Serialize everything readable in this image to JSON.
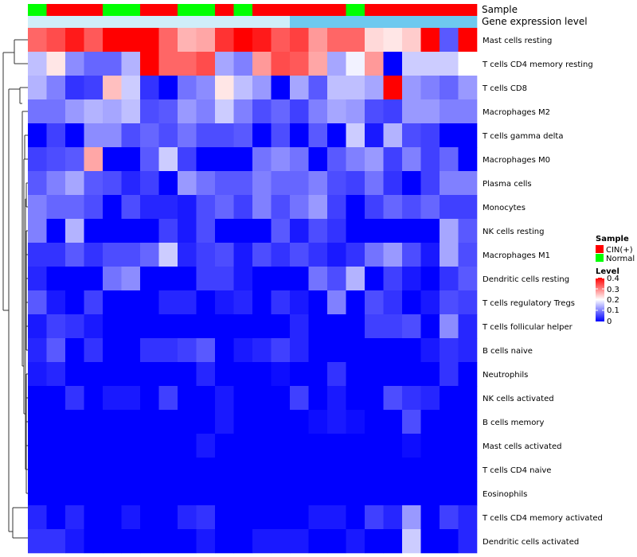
{
  "chart_data": {
    "type": "heatmap",
    "title": "",
    "annotation_tracks": [
      {
        "label": "Sample",
        "values": [
          "Normal",
          "CIN(+)",
          "CIN(+)",
          "CIN(+)",
          "Normal",
          "Normal",
          "CIN(+)",
          "CIN(+)",
          "Normal",
          "Normal",
          "CIN(+)",
          "Normal",
          "CIN(+)",
          "CIN(+)",
          "CIN(+)",
          "CIN(+)",
          "CIN(+)",
          "Normal",
          "CIN(+)",
          "CIN(+)",
          "CIN(+)",
          "CIN(+)",
          "CIN(+)",
          "CIN(+)"
        ]
      },
      {
        "label": "Gene expression level"
      }
    ],
    "rows": [
      "Mast cells resting",
      "T cells CD4 memory resting",
      "T cells CD8",
      "Macrophages M2",
      "T cells gamma delta",
      "Macrophages M0",
      "Plasma cells",
      "Monocytes",
      "NK cells resting",
      "Macrophages M1",
      "Dendritic cells resting",
      "T cells regulatory  Tregs",
      "T cells follicular helper",
      "B cells naive",
      "Neutrophils",
      "NK cells activated",
      "B cells memory",
      "Mast cells activated",
      "T cells CD4 naive",
      "Eosinophils",
      "T cells CD4 memory activated",
      "Dendritic cells activated"
    ],
    "values": [
      [
        0.32,
        0.34,
        0.38,
        0.33,
        0.4,
        0.4,
        0.4,
        0.32,
        0.26,
        0.27,
        0.36,
        0.4,
        0.38,
        0.33,
        0.35,
        0.28,
        0.32,
        0.32,
        0.23,
        0.22,
        0.24,
        0.4,
        0.07,
        0.4
      ],
      [
        0.15,
        0.22,
        0.11,
        0.08,
        0.08,
        0.14,
        0.4,
        0.32,
        0.32,
        0.34,
        0.13,
        0.1,
        0.28,
        0.34,
        0.33,
        0.27,
        0.13,
        0.19,
        0.28,
        0.0,
        0.16,
        0.16,
        0.16,
        0.2
      ],
      [
        0.14,
        0.1,
        0.04,
        0.05,
        0.25,
        0.16,
        0.04,
        0.0,
        0.09,
        0.11,
        0.22,
        0.15,
        0.12,
        0.0,
        0.13,
        0.07,
        0.15,
        0.15,
        0.13,
        0.4,
        0.12,
        0.1,
        0.08,
        0.12
      ],
      [
        0.09,
        0.09,
        0.12,
        0.14,
        0.13,
        0.15,
        0.06,
        0.07,
        0.12,
        0.1,
        0.16,
        0.1,
        0.06,
        0.08,
        0.05,
        0.1,
        0.13,
        0.12,
        0.06,
        0.05,
        0.12,
        0.12,
        0.1,
        0.1
      ],
      [
        0.0,
        0.05,
        0.0,
        0.11,
        0.11,
        0.06,
        0.08,
        0.06,
        0.09,
        0.06,
        0.06,
        0.07,
        0.0,
        0.06,
        0.0,
        0.07,
        0.0,
        0.16,
        0.02,
        0.14,
        0.06,
        0.05,
        0.0,
        0.0
      ],
      [
        0.05,
        0.06,
        0.07,
        0.27,
        0.0,
        0.0,
        0.07,
        0.16,
        0.05,
        0.0,
        0.0,
        0.0,
        0.09,
        0.11,
        0.09,
        0.0,
        0.07,
        0.1,
        0.12,
        0.05,
        0.1,
        0.05,
        0.08,
        0.0
      ],
      [
        0.07,
        0.1,
        0.13,
        0.07,
        0.06,
        0.03,
        0.05,
        0.0,
        0.12,
        0.09,
        0.07,
        0.07,
        0.1,
        0.08,
        0.08,
        0.1,
        0.06,
        0.05,
        0.09,
        0.04,
        0.0,
        0.05,
        0.1,
        0.1
      ],
      [
        0.1,
        0.08,
        0.08,
        0.06,
        0.0,
        0.06,
        0.03,
        0.03,
        0.02,
        0.06,
        0.08,
        0.05,
        0.1,
        0.06,
        0.09,
        0.12,
        0.05,
        0.0,
        0.05,
        0.08,
        0.06,
        0.08,
        0.05,
        0.05
      ],
      [
        0.1,
        0.0,
        0.14,
        0.0,
        0.0,
        0.0,
        0.0,
        0.05,
        0.02,
        0.06,
        0.0,
        0.0,
        0.0,
        0.07,
        0.02,
        0.06,
        0.04,
        0.0,
        0.0,
        0.0,
        0.0,
        0.0,
        0.13,
        0.07
      ],
      [
        0.04,
        0.04,
        0.07,
        0.04,
        0.06,
        0.06,
        0.08,
        0.16,
        0.03,
        0.05,
        0.06,
        0.02,
        0.06,
        0.04,
        0.06,
        0.04,
        0.02,
        0.04,
        0.09,
        0.12,
        0.06,
        0.02,
        0.13,
        0.06
      ],
      [
        0.03,
        0.0,
        0.0,
        0.0,
        0.09,
        0.11,
        0.0,
        0.0,
        0.0,
        0.05,
        0.05,
        0.02,
        0.0,
        0.0,
        0.0,
        0.09,
        0.06,
        0.14,
        0.0,
        0.05,
        0.02,
        0.0,
        0.04,
        0.07
      ],
      [
        0.07,
        0.02,
        0.0,
        0.05,
        0.0,
        0.0,
        0.0,
        0.03,
        0.03,
        0.0,
        0.02,
        0.03,
        0.0,
        0.04,
        0.02,
        0.0,
        0.1,
        0.0,
        0.06,
        0.04,
        0.0,
        0.02,
        0.06,
        0.05
      ],
      [
        0.02,
        0.05,
        0.04,
        0.02,
        0.0,
        0.0,
        0.0,
        0.0,
        0.0,
        0.0,
        0.0,
        0.0,
        0.0,
        0.0,
        0.03,
        0.0,
        0.0,
        0.0,
        0.05,
        0.05,
        0.06,
        0.0,
        0.11,
        0.03
      ],
      [
        0.03,
        0.07,
        0.0,
        0.04,
        0.0,
        0.0,
        0.04,
        0.04,
        0.05,
        0.07,
        0.0,
        0.02,
        0.03,
        0.05,
        0.03,
        0.0,
        0.0,
        0.0,
        0.0,
        0.0,
        0.0,
        0.02,
        0.04,
        0.03
      ],
      [
        0.02,
        0.03,
        0.0,
        0.0,
        0.0,
        0.0,
        0.0,
        0.0,
        0.0,
        0.03,
        0.0,
        0.0,
        0.0,
        0.01,
        0.0,
        0.0,
        0.04,
        0.0,
        0.0,
        0.0,
        0.0,
        0.0,
        0.04,
        0.0
      ],
      [
        0.0,
        0.0,
        0.04,
        0.0,
        0.02,
        0.02,
        0.0,
        0.05,
        0.0,
        0.0,
        0.02,
        0.0,
        0.0,
        0.0,
        0.05,
        0.0,
        0.02,
        0.0,
        0.0,
        0.06,
        0.04,
        0.03,
        0.0,
        0.0
      ],
      [
        0.0,
        0.0,
        0.0,
        0.0,
        0.0,
        0.0,
        0.0,
        0.0,
        0.0,
        0.0,
        0.02,
        0.0,
        0.0,
        0.0,
        0.0,
        0.01,
        0.02,
        0.01,
        0.0,
        0.0,
        0.06,
        0.0,
        0.0,
        0.0
      ],
      [
        0.0,
        0.0,
        0.0,
        0.0,
        0.0,
        0.0,
        0.0,
        0.0,
        0.0,
        0.02,
        0.0,
        0.0,
        0.0,
        0.0,
        0.0,
        0.0,
        0.0,
        0.0,
        0.0,
        0.0,
        0.01,
        0.0,
        0.0,
        0.0
      ],
      [
        0.0,
        0.0,
        0.0,
        0.0,
        0.0,
        0.0,
        0.0,
        0.0,
        0.0,
        0.0,
        0.0,
        0.0,
        0.0,
        0.0,
        0.0,
        0.0,
        0.0,
        0.0,
        0.0,
        0.0,
        0.0,
        0.0,
        0.0,
        0.0
      ],
      [
        0.0,
        0.0,
        0.0,
        0.0,
        0.0,
        0.0,
        0.0,
        0.0,
        0.0,
        0.0,
        0.0,
        0.0,
        0.0,
        0.0,
        0.0,
        0.0,
        0.0,
        0.0,
        0.0,
        0.0,
        0.0,
        0.0,
        0.0,
        0.0
      ],
      [
        0.03,
        0.0,
        0.03,
        0.0,
        0.0,
        0.02,
        0.0,
        0.0,
        0.03,
        0.04,
        0.0,
        0.0,
        0.0,
        0.0,
        0.0,
        0.02,
        0.02,
        0.0,
        0.05,
        0.03,
        0.12,
        0.0,
        0.05,
        0.03
      ],
      [
        0.04,
        0.04,
        0.02,
        0.0,
        0.0,
        0.0,
        0.0,
        0.0,
        0.0,
        0.02,
        0.0,
        0.0,
        0.02,
        0.02,
        0.02,
        0.0,
        0.0,
        0.02,
        0.0,
        0.0,
        0.16,
        0.0,
        0.0,
        0.03
      ]
    ],
    "color_scale": {
      "min": 0,
      "max": 0.4,
      "low": "#0000ff",
      "mid": "#ffffff",
      "high": "#ff0000",
      "mid_value": 0.2
    },
    "legend": {
      "position": "right",
      "sample_title": "Sample",
      "sample_entries": [
        {
          "label": "CIN(+)",
          "color": "#ff0000"
        },
        {
          "label": "Normal",
          "color": "#00ff00"
        }
      ],
      "level_title": "Level",
      "level_ticks": [
        "0.4",
        "0.3",
        "0.2",
        "0.1",
        "0"
      ]
    },
    "gene_expr_track_color": "#6ec9ef",
    "xlabel": "",
    "ylabel": ""
  }
}
